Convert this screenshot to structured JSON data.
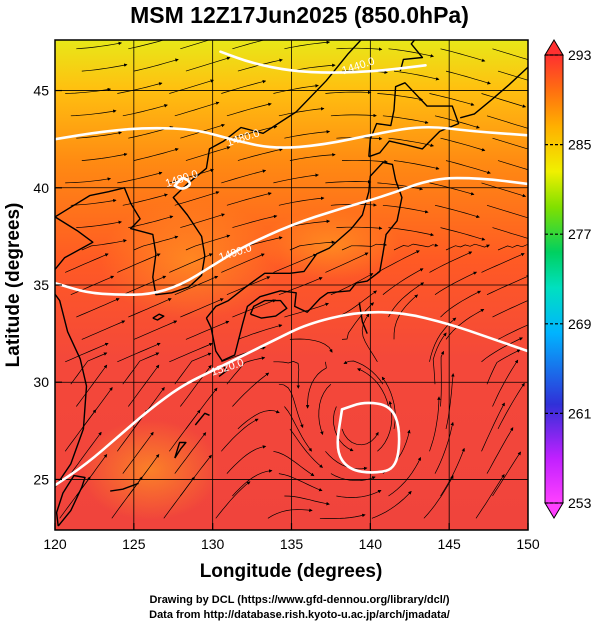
{
  "title": "MSM 12Z17Jun2025 (850.0hPa)",
  "credits": {
    "line1": "Drawing by DCL (https://www.gfd-dennou.org/library/dcl/)",
    "line2": "Data from http://database.rish.kyoto-u.ac.jp/arch/jmadata/"
  },
  "map": {
    "projection": "equirectangular",
    "lon_range": [
      120,
      150
    ],
    "lat_range": [
      22.4,
      47.6
    ],
    "xlabel": "Longitude (degrees)",
    "ylabel": "Latitude  (degrees)",
    "x_ticks": [
      120,
      125,
      130,
      135,
      140,
      145,
      150
    ],
    "y_ticks": [
      25,
      30,
      35,
      40,
      45
    ],
    "x_tick_labels": [
      "120",
      "125",
      "130",
      "135",
      "140",
      "145",
      "150"
    ],
    "y_tick_labels": [
      "25",
      "30",
      "35",
      "40",
      "45"
    ],
    "grid": true,
    "shading": "temperature (K)",
    "contour_variable": "geopotential height (m)",
    "contour_color": "#ffffff",
    "contours": [
      {
        "label": "1440.0",
        "label_at": [
          139.3,
          46.1
        ],
        "points": [
          [
            130.5,
            47.0
          ],
          [
            132.5,
            46.4
          ],
          [
            135,
            46.0
          ],
          [
            137.5,
            45.9
          ],
          [
            140.5,
            46.0
          ],
          [
            143.5,
            46.3
          ]
        ]
      },
      {
        "label": "1480.0",
        "label_at": [
          132.0,
          42.4
        ],
        "points": [
          [
            120,
            42.5
          ],
          [
            123,
            42.9
          ],
          [
            126,
            43.1
          ],
          [
            129,
            43.0
          ],
          [
            131.5,
            42.4
          ],
          [
            134,
            42.0
          ],
          [
            137,
            42.2
          ],
          [
            140.5,
            42.8
          ],
          [
            143.5,
            43.2
          ],
          [
            146.5,
            42.9
          ],
          [
            150,
            42.7
          ]
        ]
      },
      {
        "label": "1480.0",
        "label_at": [
          128.1,
          40.3
        ],
        "points": [
          [
            127.6,
            40.1
          ],
          [
            128.1,
            40.6
          ],
          [
            128.7,
            40.2
          ],
          [
            128.1,
            39.9
          ],
          [
            127.6,
            40.1
          ]
        ]
      },
      {
        "label": "1490.0",
        "label_at": [
          131.5,
          36.5
        ],
        "points": [
          [
            120,
            35.1
          ],
          [
            122,
            34.6
          ],
          [
            124,
            34.5
          ],
          [
            126,
            34.5
          ],
          [
            128,
            35.0
          ],
          [
            130,
            36.0
          ],
          [
            132,
            37.0
          ],
          [
            135,
            38.1
          ],
          [
            138,
            38.9
          ],
          [
            141,
            39.6
          ],
          [
            144,
            40.5
          ],
          [
            147,
            40.5
          ],
          [
            150,
            40.2
          ]
        ]
      },
      {
        "label": "1520.0",
        "label_at": [
          131.0,
          30.6
        ],
        "points": [
          [
            120,
            24.7
          ],
          [
            122,
            25.8
          ],
          [
            124,
            27.2
          ],
          [
            126,
            28.6
          ],
          [
            128,
            29.8
          ],
          [
            130,
            30.6
          ],
          [
            132,
            31.4
          ],
          [
            134,
            32.2
          ],
          [
            136,
            33.0
          ],
          [
            139,
            33.6
          ],
          [
            142,
            33.6
          ],
          [
            145,
            33.0
          ],
          [
            147.5,
            32.3
          ],
          [
            150,
            31.6
          ]
        ]
      },
      {
        "label": "",
        "label_at": [
          140,
          27
        ],
        "points": [
          [
            138.2,
            28.6
          ],
          [
            139.6,
            29.0
          ],
          [
            141.3,
            28.8
          ],
          [
            141.9,
            27.6
          ],
          [
            141.7,
            25.6
          ],
          [
            140.3,
            25.3
          ],
          [
            138.6,
            25.5
          ],
          [
            137.8,
            26.5
          ],
          [
            138.2,
            28.6
          ]
        ]
      }
    ]
  },
  "colorbar": {
    "unit_tick_values": [
      293,
      285,
      277,
      269,
      261,
      253
    ],
    "tick_labels": [
      "293",
      "285",
      "277",
      "269",
      "261",
      "253"
    ],
    "range": [
      253,
      293
    ],
    "colors": [
      "#ff40ff",
      "#c020ff",
      "#4040e0",
      "#00b4ff",
      "#00e6c8",
      "#00d060",
      "#80e000",
      "#f0f000",
      "#ffb000",
      "#ff7010",
      "#ff3030"
    ]
  },
  "field": {
    "temperature_description_colors": {
      "warm_south": "#f4483a",
      "mid": "#ff6a18",
      "north": "#ffb810",
      "far_north": "#e8e818"
    }
  }
}
